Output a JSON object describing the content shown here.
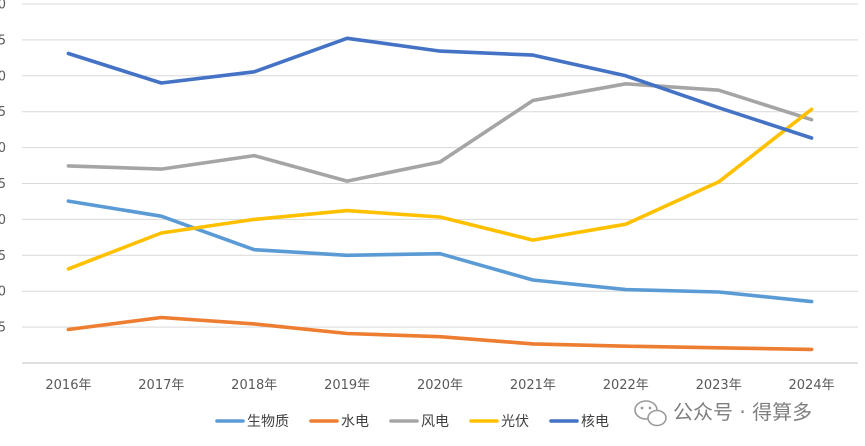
{
  "chart_data": {
    "type": "line",
    "title": "",
    "xlabel": "",
    "ylabel": "",
    "categories": [
      "2016年",
      "2017年",
      "2018年",
      "2019年",
      "2020年",
      "2021年",
      "2022年",
      "2023年",
      "2024年"
    ],
    "y_tick_labels": [
      "",
      "5",
      "0",
      "5",
      "0",
      "5",
      "0",
      "5",
      "0",
      "5",
      "0"
    ],
    "ylim": [
      0,
      45
    ],
    "grid": true,
    "legend_position": "bottom",
    "series": [
      {
        "name": "生物质",
        "color": "#5B9BD5",
        "values": [
          20.3,
          18.4,
          14.2,
          13.5,
          13.7,
          10.4,
          9.2,
          8.9,
          7.7
        ]
      },
      {
        "name": "水电",
        "color": "#ED7D31",
        "values": [
          4.2,
          5.7,
          4.9,
          3.7,
          3.3,
          2.4,
          2.1,
          1.9,
          1.7
        ]
      },
      {
        "name": "风电",
        "color": "#A5A5A5",
        "values": [
          24.7,
          24.3,
          26.0,
          22.8,
          25.2,
          32.9,
          35.0,
          34.2,
          30.5
        ]
      },
      {
        "name": "光伏",
        "color": "#FFC000",
        "values": [
          11.8,
          16.3,
          18.0,
          19.1,
          18.3,
          15.4,
          17.4,
          22.7,
          31.8
        ]
      },
      {
        "name": "核电",
        "color": "#4472C4",
        "values": [
          38.8,
          35.1,
          36.5,
          40.7,
          39.1,
          38.6,
          36.0,
          32.0,
          28.2
        ]
      }
    ]
  },
  "watermark": {
    "icon": "wechat-icon",
    "text": "公众号 · 得算多"
  }
}
